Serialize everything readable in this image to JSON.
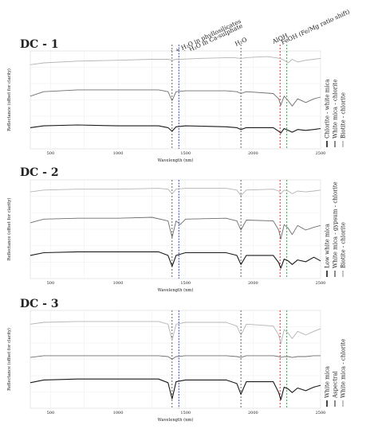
{
  "figure": {
    "annotations": [
      "OH + H₂O in phyllosilicates",
      "OH + H₂O in Ca-sulphate",
      "H₂O",
      "AlOH",
      "FeOH (Fe/Mg ratio shift)"
    ]
  },
  "chart_data": [
    {
      "type": "line",
      "title": "DC - 1",
      "xlabel": "Wavelength (nm)",
      "ylabel": "Reflectance (offset for clarity)",
      "xlim": [
        350,
        2500
      ],
      "x_ticks": [
        "500",
        "1000",
        "1500",
        "2000",
        "2500"
      ],
      "grid": true,
      "legend_position": "right, rotated",
      "reference_lines_nm": [
        1400,
        1450,
        1910,
        2200,
        2250
      ],
      "series": [
        {
          "name": "Biotite - chlorite",
          "color": "#b4b4b4",
          "x": [
            350,
            450,
            700,
            1000,
            1250,
            1370,
            1400,
            1430,
            1460,
            1600,
            1850,
            1910,
            1960,
            2100,
            2160,
            2200,
            2230,
            2260,
            2290,
            2330,
            2390,
            2450,
            2500
          ],
          "y": [
            0.9,
            0.92,
            0.94,
            0.95,
            0.96,
            0.96,
            0.95,
            0.96,
            0.96,
            0.97,
            0.98,
            0.97,
            0.98,
            0.99,
            0.98,
            0.97,
            0.95,
            0.92,
            0.96,
            0.93,
            0.95,
            0.96,
            0.97
          ]
        },
        {
          "name": "White mica - chlorite",
          "color": "#6e6e6e",
          "x": [
            350,
            450,
            700,
            1000,
            1300,
            1370,
            1400,
            1430,
            1500,
            1800,
            1880,
            1910,
            1950,
            2150,
            2190,
            2205,
            2230,
            2260,
            2290,
            2330,
            2390,
            2450,
            2500
          ],
          "y": [
            0.55,
            0.6,
            0.62,
            0.62,
            0.62,
            0.6,
            0.5,
            0.6,
            0.61,
            0.61,
            0.6,
            0.58,
            0.6,
            0.58,
            0.52,
            0.45,
            0.55,
            0.5,
            0.44,
            0.52,
            0.48,
            0.52,
            0.54
          ]
        },
        {
          "name": "Chlorite - white mica",
          "color": "#1a1a1a",
          "x": [
            350,
            450,
            700,
            1000,
            1300,
            1370,
            1400,
            1430,
            1500,
            1800,
            1880,
            1910,
            1950,
            2150,
            2190,
            2205,
            2230,
            2260,
            2290,
            2330,
            2390,
            2450,
            2500
          ],
          "y": [
            0.2,
            0.22,
            0.23,
            0.22,
            0.22,
            0.2,
            0.16,
            0.21,
            0.22,
            0.21,
            0.2,
            0.18,
            0.2,
            0.2,
            0.16,
            0.14,
            0.19,
            0.17,
            0.15,
            0.18,
            0.17,
            0.18,
            0.19
          ]
        }
      ]
    },
    {
      "type": "line",
      "title": "DC - 2",
      "xlabel": "Wavelength (nm)",
      "ylabel": "Reflectance (offset for clarity)",
      "xlim": [
        350,
        2500
      ],
      "x_ticks": [
        "500",
        "1000",
        "1500",
        "2000",
        "2500"
      ],
      "grid": true,
      "legend_position": "right, rotated",
      "reference_lines_nm": [
        1400,
        1450,
        1910,
        2200,
        2250
      ],
      "series": [
        {
          "name": "Biotite - chlorite",
          "color": "#b4b4b4",
          "x": [
            350,
            450,
            700,
            1000,
            1300,
            1370,
            1400,
            1430,
            1500,
            1800,
            1880,
            1910,
            1950,
            2150,
            2190,
            2205,
            2230,
            2260,
            2290,
            2330,
            2390,
            2450,
            2500
          ],
          "y": [
            0.92,
            0.94,
            0.95,
            0.95,
            0.96,
            0.95,
            0.9,
            0.95,
            0.96,
            0.96,
            0.94,
            0.88,
            0.94,
            0.95,
            0.93,
            0.9,
            0.94,
            0.93,
            0.9,
            0.93,
            0.92,
            0.93,
            0.94
          ]
        },
        {
          "name": "White mica - gypsum - chlorite",
          "color": "#6e6e6e",
          "x": [
            350,
            450,
            700,
            1000,
            1250,
            1370,
            1400,
            1430,
            1460,
            1500,
            1800,
            1880,
            1910,
            1950,
            2150,
            2190,
            2205,
            2230,
            2260,
            2290,
            2330,
            2390,
            2450,
            2500
          ],
          "y": [
            0.58,
            0.62,
            0.63,
            0.63,
            0.64,
            0.6,
            0.42,
            0.6,
            0.56,
            0.62,
            0.63,
            0.6,
            0.5,
            0.61,
            0.6,
            0.5,
            0.4,
            0.56,
            0.52,
            0.45,
            0.55,
            0.5,
            0.53,
            0.55
          ]
        },
        {
          "name": "Low white mica",
          "color": "#1a1a1a",
          "x": [
            350,
            450,
            700,
            1000,
            1300,
            1370,
            1400,
            1430,
            1500,
            1800,
            1880,
            1910,
            1950,
            2150,
            2190,
            2205,
            2230,
            2260,
            2290,
            2330,
            2390,
            2450,
            2500
          ],
          "y": [
            0.22,
            0.25,
            0.26,
            0.26,
            0.26,
            0.22,
            0.1,
            0.22,
            0.25,
            0.25,
            0.22,
            0.12,
            0.22,
            0.22,
            0.14,
            0.08,
            0.18,
            0.16,
            0.12,
            0.17,
            0.15,
            0.2,
            0.16
          ]
        }
      ]
    },
    {
      "type": "line",
      "title": "DC - 3",
      "xlabel": "Wavelength (nm)",
      "ylabel": "Reflectance (offset for clarity)",
      "xlim": [
        350,
        2500
      ],
      "x_ticks": [
        "500",
        "1000",
        "1500",
        "2000",
        "2500"
      ],
      "grid": true,
      "legend_position": "right, rotated",
      "reference_lines_nm": [
        1400,
        1450,
        1910,
        2200,
        2250
      ],
      "series": [
        {
          "name": "White mica - chlorite",
          "color": "#b4b4b4",
          "x": [
            350,
            450,
            700,
            1000,
            1300,
            1370,
            1400,
            1430,
            1500,
            1800,
            1880,
            1910,
            1950,
            2150,
            2190,
            2205,
            2230,
            2260,
            2290,
            2330,
            2390,
            2450,
            2500
          ],
          "y": [
            0.9,
            0.92,
            0.93,
            0.93,
            0.93,
            0.9,
            0.72,
            0.9,
            0.92,
            0.92,
            0.88,
            0.78,
            0.9,
            0.88,
            0.78,
            0.68,
            0.84,
            0.8,
            0.74,
            0.82,
            0.78,
            0.82,
            0.85
          ]
        },
        {
          "name": "Aspectral",
          "color": "#6e6e6e",
          "x": [
            350,
            450,
            700,
            1000,
            1300,
            1370,
            1400,
            1430,
            1500,
            1800,
            1880,
            1910,
            1950,
            2150,
            2190,
            2205,
            2230,
            2260,
            2290,
            2330,
            2390,
            2450,
            2500
          ],
          "y": [
            0.53,
            0.55,
            0.55,
            0.55,
            0.55,
            0.54,
            0.51,
            0.54,
            0.55,
            0.55,
            0.54,
            0.53,
            0.55,
            0.55,
            0.54,
            0.53,
            0.54,
            0.54,
            0.53,
            0.54,
            0.54,
            0.55,
            0.55
          ]
        },
        {
          "name": "White mica",
          "color": "#1a1a1a",
          "x": [
            350,
            450,
            700,
            1000,
            1300,
            1370,
            1400,
            1430,
            1500,
            1800,
            1880,
            1910,
            1950,
            2150,
            2190,
            2205,
            2230,
            2260,
            2290,
            2330,
            2390,
            2450,
            2500
          ],
          "y": [
            0.25,
            0.28,
            0.29,
            0.29,
            0.29,
            0.25,
            0.07,
            0.26,
            0.28,
            0.28,
            0.24,
            0.12,
            0.26,
            0.26,
            0.14,
            0.06,
            0.2,
            0.18,
            0.14,
            0.19,
            0.16,
            0.2,
            0.22
          ]
        }
      ]
    }
  ]
}
